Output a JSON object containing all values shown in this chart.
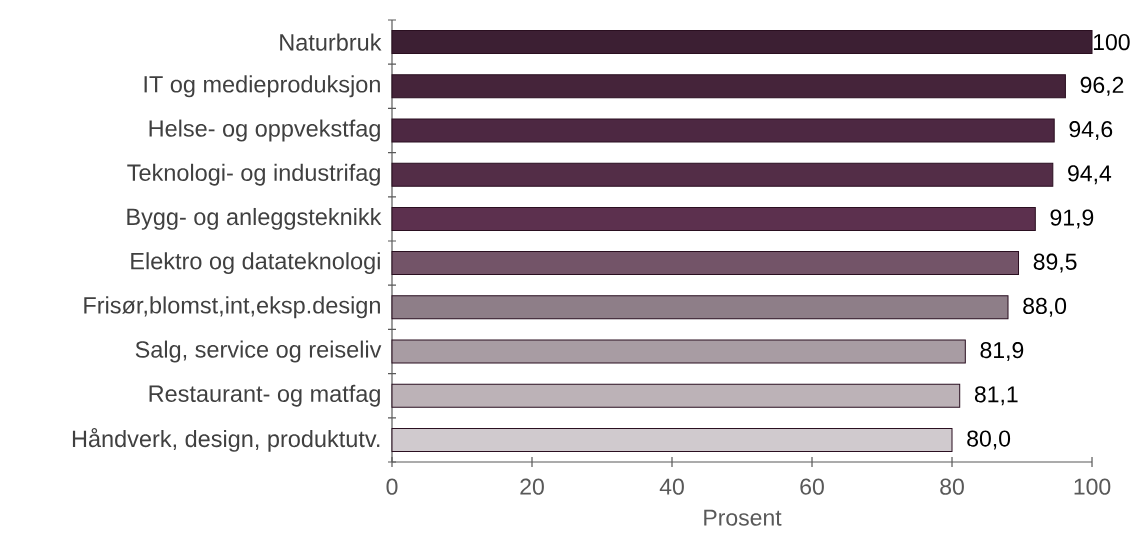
{
  "chart_data": {
    "type": "bar",
    "orientation": "horizontal",
    "xlabel": "Prosent",
    "categories": [
      "Naturbruk",
      "IT og medieproduksjon",
      "Helse- og oppvekstfag",
      "Teknologi- og industrifag",
      "Bygg- og anleggsteknikk",
      "Elektro og datateknologi",
      "Frisør,blomst,int,eksp.design",
      "Salg, service og reiseliv",
      "Restaurant- og matfag",
      "Håndverk, design, produktutv."
    ],
    "values": [
      100,
      96.2,
      94.6,
      94.4,
      91.9,
      89.5,
      88.0,
      81.9,
      81.1,
      80.0
    ],
    "value_labels": [
      "100",
      "96,2",
      "94,6",
      "94,4",
      "91,9",
      "89,5",
      "88,0",
      "81,9",
      "81,1",
      "80,0"
    ],
    "colors": [
      "#3c1f33",
      "#45243a",
      "#4d2842",
      "#532d47",
      "#5c304e",
      "#735468",
      "#8e7e88",
      "#a89ca3",
      "#bcb2b7",
      "#d0cace"
    ],
    "xlim": [
      0,
      100
    ],
    "xticks": [
      0,
      20,
      40,
      60,
      80,
      100
    ],
    "grid": false
  }
}
